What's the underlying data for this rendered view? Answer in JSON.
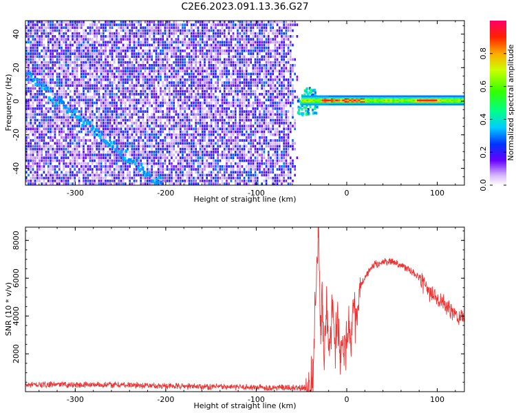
{
  "figure": {
    "title": "C2E6.2023.091.13.36.G27"
  },
  "chart_data": [
    {
      "type": "heatmap",
      "xlabel": "Height of straight line (km)",
      "ylabel": "Frequency (Hz)",
      "xlim": [
        -355,
        130
      ],
      "ylim": [
        -50,
        48
      ],
      "xticks": [
        -300,
        -200,
        -100,
        0,
        100
      ],
      "yticks": [
        -40,
        -20,
        0,
        20,
        40
      ],
      "colorbar": {
        "label": "Normalized spectral amplitude",
        "range": [
          0,
          1
        ],
        "ticks": [
          "0.0",
          "0.2",
          "0.4",
          "0.6",
          "0.8"
        ],
        "tick_values": [
          0,
          0.2,
          0.4,
          0.6,
          0.8
        ]
      },
      "regions": [
        {
          "name": "diffuse noise",
          "x_from": -355,
          "x_to": -55,
          "freq_from": -50,
          "freq_to": 48,
          "amplitude": [
            0.05,
            0.3
          ]
        },
        {
          "name": "drifting signal trace",
          "x_from": -355,
          "x_to": -205,
          "freq_start": 15,
          "freq_end": -50,
          "amplitude": 0.3
        },
        {
          "name": "carrier line",
          "x_from": -55,
          "x_to": 130,
          "freq_center": 0.5,
          "amplitude": [
            0.3,
            1.0
          ]
        }
      ]
    },
    {
      "type": "line",
      "xlabel": "Height of straight line (km)",
      "ylabel": "SNR (10 * v/v)",
      "xlim": [
        -355,
        130
      ],
      "ylim": [
        0,
        8700
      ],
      "xticks": [
        -300,
        -200,
        -100,
        0,
        100
      ],
      "yticks": [
        2000,
        4000,
        6000,
        8000
      ],
      "series": [
        {
          "color": "#ee3333",
          "x": [
            -355,
            -300,
            -250,
            -200,
            -150,
            -100,
            -60,
            -45,
            -40,
            -37,
            -35,
            -33,
            -31,
            -29,
            -27,
            -25,
            -22,
            -19,
            -16,
            -13,
            -10,
            -7,
            -4,
            -1,
            2,
            5,
            8,
            11,
            15,
            20,
            25,
            30,
            40,
            50,
            60,
            70,
            80,
            90,
            100,
            110,
            120,
            130
          ],
          "values": [
            350,
            380,
            360,
            300,
            260,
            230,
            200,
            180,
            400,
            1200,
            4500,
            6500,
            8600,
            3000,
            5200,
            1500,
            4800,
            1800,
            4600,
            2300,
            4200,
            1600,
            2800,
            2500,
            3600,
            2800,
            4200,
            3600,
            5500,
            6000,
            6400,
            6700,
            6850,
            6900,
            6700,
            6400,
            6000,
            5300,
            5000,
            4500,
            4100,
            3900
          ]
        }
      ]
    }
  ]
}
